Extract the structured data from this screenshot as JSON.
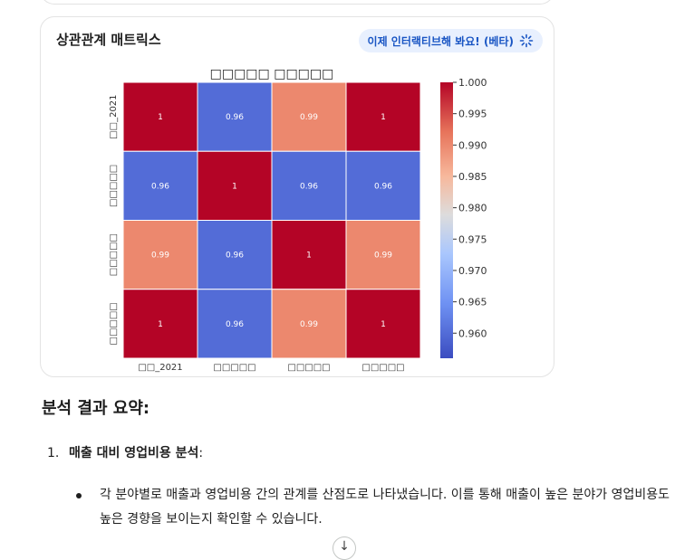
{
  "card": {
    "title": "상관관계 매트릭스",
    "interactive_label": "이제 인터랙티브해 봐요! (베타)"
  },
  "chart_data": {
    "type": "heatmap",
    "title": "□□□□□ □□□□□",
    "rows": [
      "□□_2021",
      "□□□□□",
      "□□□□□",
      "□□□□□"
    ],
    "columns": [
      "□□_2021",
      "□□□□□",
      "□□□□□",
      "□□□□□"
    ],
    "values": [
      [
        1,
        0.96,
        0.99,
        1
      ],
      [
        0.96,
        1,
        0.96,
        0.96
      ],
      [
        0.99,
        0.96,
        1,
        0.99
      ],
      [
        1,
        0.96,
        0.99,
        1
      ]
    ],
    "cell_labels": [
      [
        "1",
        "0.96",
        "0.99",
        "1"
      ],
      [
        "0.96",
        "1",
        "0.96",
        "0.96"
      ],
      [
        "0.99",
        "0.96",
        "1",
        "0.99"
      ],
      [
        "1",
        "0.96",
        "0.99",
        "1"
      ]
    ],
    "colorscale": "coolwarm",
    "colorbar_range": [
      0.956,
      1.0
    ],
    "colorbar_ticks": [
      "1.000",
      "0.995",
      "0.990",
      "0.985",
      "0.980",
      "0.975",
      "0.970",
      "0.965",
      "0.960"
    ]
  },
  "summary": {
    "heading": "분석 결과 요약:",
    "item1_number": "1.",
    "item1_title": "매출 대비 영업비용 분석",
    "item1_colon": ":",
    "bullet1": "각 분야별로 매출과 영업비용 간의 관계를 산점도로 나타냈습니다. 이를 통해 매출이 높은 분야가 영업비용도 높은 경향을 보이는지 확인할 수 있습니다."
  },
  "scroll_button": {
    "icon": "arrow-down-icon",
    "glyph": "↓"
  }
}
